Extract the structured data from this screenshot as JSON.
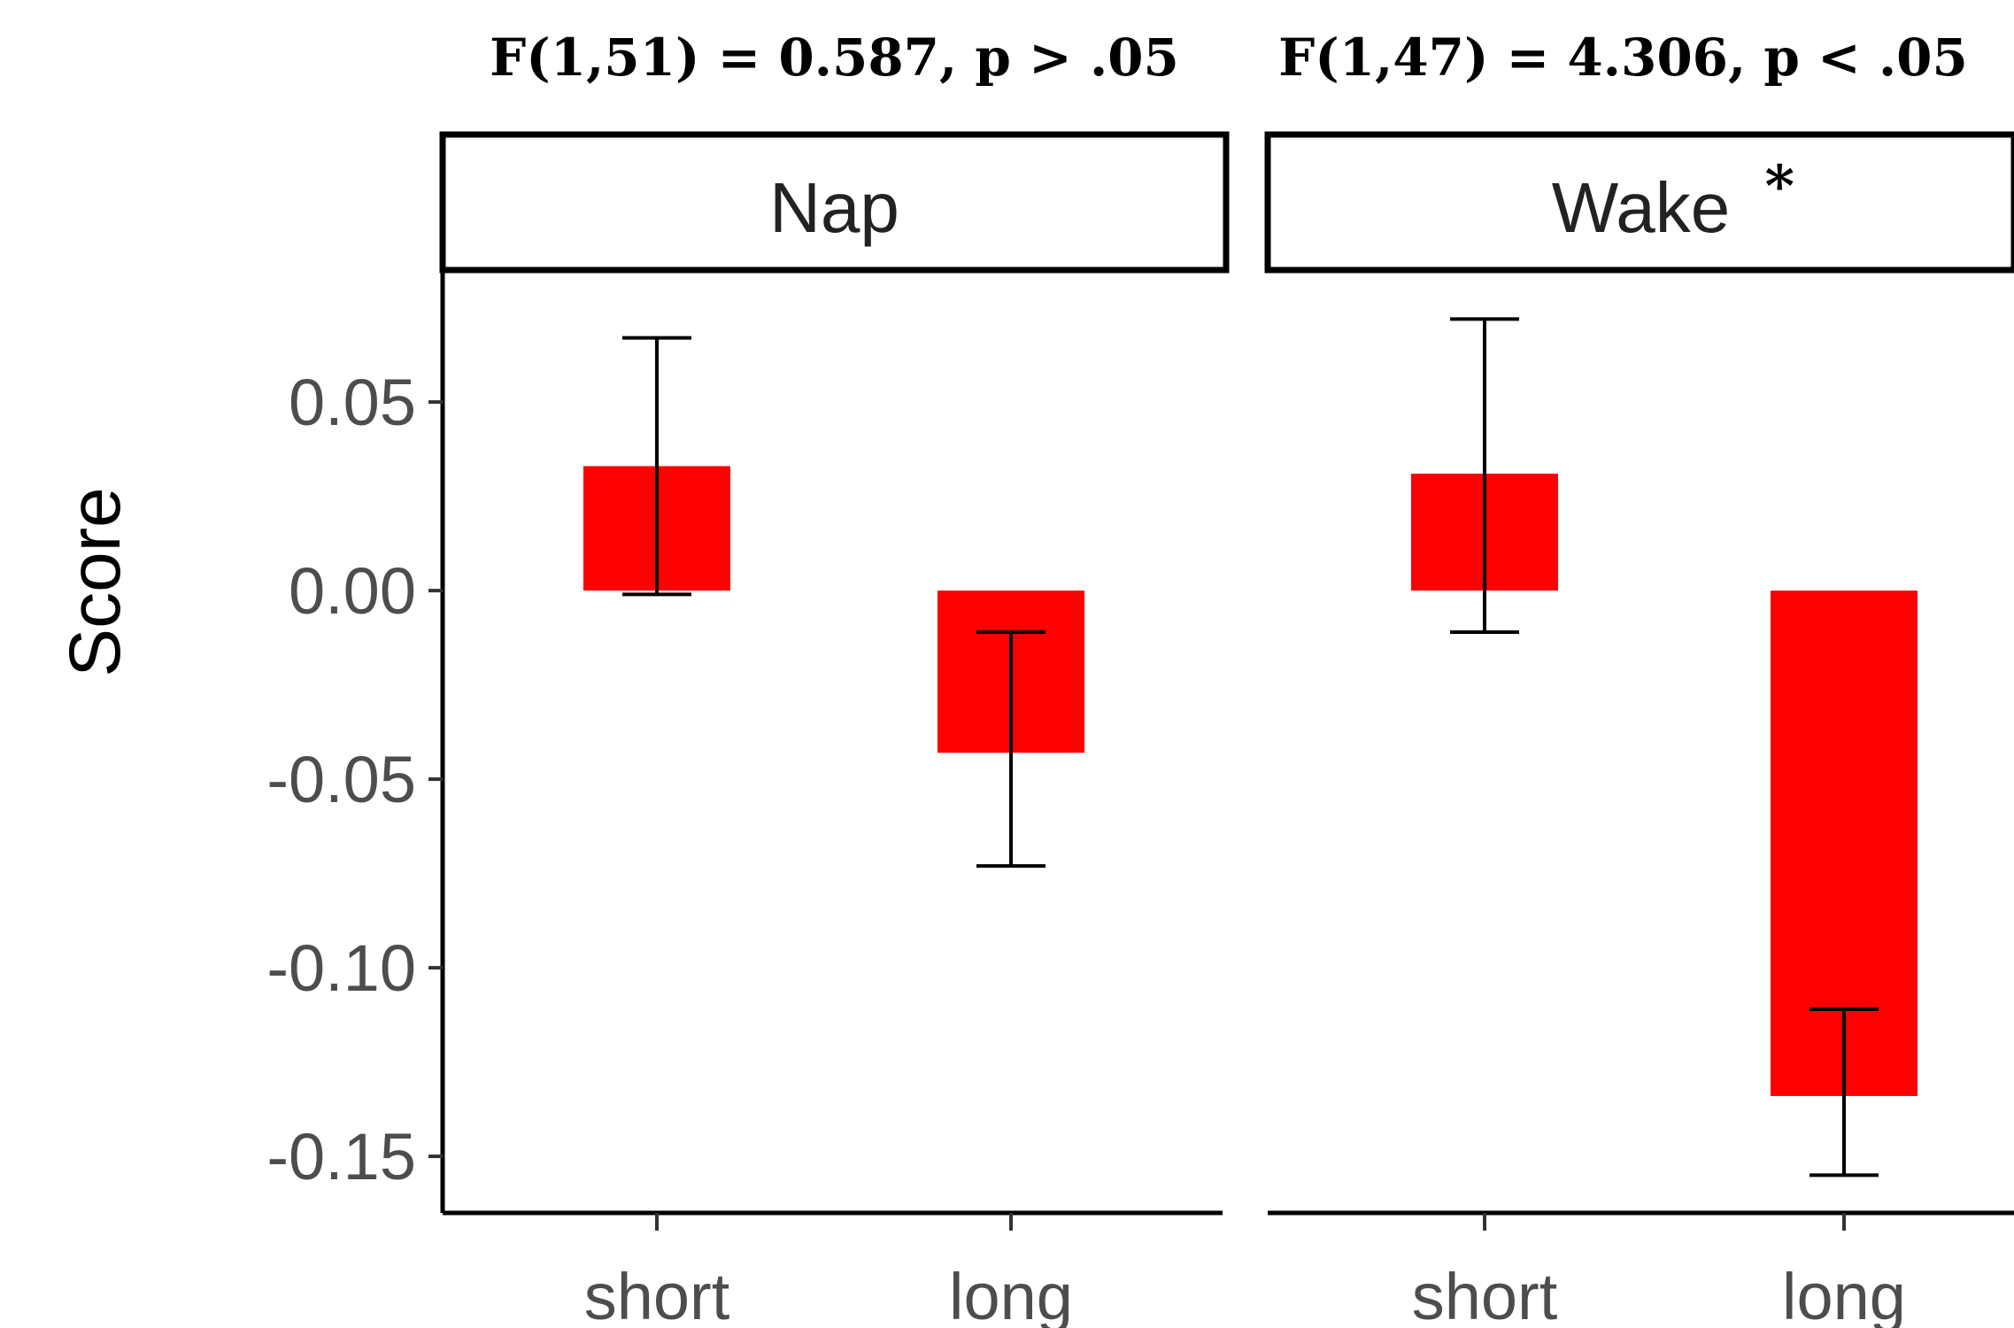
{
  "chart_data": {
    "type": "bar",
    "ylabel": "Score",
    "ylim": [
      -0.165,
      0.085
    ],
    "yticks": [
      0.05,
      0.0,
      -0.05,
      -0.1,
      -0.15
    ],
    "ytick_labels": [
      "0.05",
      "0.00",
      "-0.05",
      "-0.10",
      "-0.15"
    ],
    "bar_color": "#ff0000",
    "grid": false,
    "panels": [
      {
        "strip": "Nap",
        "annotation": "F(1,51) = 0.587, p > .05",
        "significance": "",
        "categories": [
          "short",
          "long"
        ],
        "values": [
          0.033,
          -0.043
        ],
        "error_low": [
          -0.001,
          -0.073
        ],
        "error_high": [
          0.067,
          -0.011
        ]
      },
      {
        "strip": "Wake",
        "annotation": "F(1,47) = 4.306, p < .05",
        "significance": "*",
        "categories": [
          "short",
          "long"
        ],
        "values": [
          0.031,
          -0.134
        ],
        "error_low": [
          -0.011,
          -0.155
        ],
        "error_high": [
          0.072,
          -0.111
        ]
      }
    ]
  }
}
